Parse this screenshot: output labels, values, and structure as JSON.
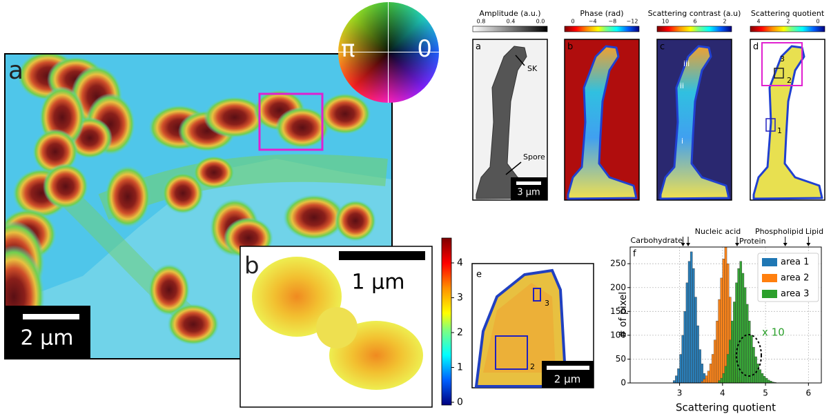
{
  "panel_a": {
    "label": "a",
    "scale_bar": "2 µm",
    "wheel_left": "π",
    "wheel_right": "0"
  },
  "panel_b": {
    "label": "b",
    "scale_bar": "1 µm",
    "colorbar_ticks": [
      "0",
      "1",
      "2",
      "3",
      "4"
    ]
  },
  "panel_e": {
    "label": "e",
    "scale_bar": "2 µm",
    "annotations": [
      "3",
      "2"
    ]
  },
  "top_panels": [
    {
      "label": "a",
      "colorbar_title": "Amplitude (a.u.)",
      "colorbar_ticks": [
        "0.8",
        "0.4",
        "0.0"
      ],
      "annotations": [
        "SK",
        "Spore"
      ],
      "scale_bar": "3 µm"
    },
    {
      "label": "b",
      "colorbar_title": "Phase (rad)",
      "colorbar_ticks": [
        "0",
        "−4",
        "−8",
        "−12"
      ]
    },
    {
      "label": "c",
      "colorbar_title": "Scattering contrast (a.u)",
      "colorbar_ticks": [
        "10",
        "6",
        "2"
      ],
      "annotations": [
        "iii",
        "ii",
        "i"
      ]
    },
    {
      "label": "d",
      "colorbar_title": "Scattering quotient",
      "colorbar_ticks": [
        "4",
        "2",
        "0"
      ],
      "annotations": [
        "3",
        "2",
        "1"
      ]
    }
  ],
  "chart_data": {
    "type": "histogram",
    "label": "f",
    "xlabel": "Scattering quotient",
    "ylabel": "# of pixel",
    "xlim": [
      1.85,
      6.3
    ],
    "ylim": [
      0,
      285
    ],
    "xticks": [
      3,
      4,
      5,
      6
    ],
    "yticks": [
      0,
      50,
      100,
      150,
      200,
      250
    ],
    "legend": "upper right",
    "bins": [
      2.8,
      2.85,
      2.9,
      2.95,
      3.0,
      3.05,
      3.1,
      3.15,
      3.2,
      3.25,
      3.3,
      3.35,
      3.4,
      3.45,
      3.5,
      3.55,
      3.6,
      3.65,
      3.7,
      3.75,
      3.8,
      3.85,
      3.9,
      3.95,
      4.0,
      4.05,
      4.1,
      4.15,
      4.2,
      4.25,
      4.3,
      4.35,
      4.4,
      4.45,
      4.5,
      4.55,
      4.6,
      4.65,
      4.7,
      4.75,
      4.8,
      4.85,
      4.9,
      4.95,
      5.0,
      5.05,
      5.1,
      5.15,
      5.2,
      5.25,
      5.3
    ],
    "series": [
      {
        "name": "area 1",
        "color": "#1f77b4",
        "values": [
          0,
          5,
          15,
          30,
          60,
          100,
          150,
          210,
          255,
          275,
          240,
          180,
          120,
          70,
          40,
          20,
          10,
          5,
          2,
          0,
          0,
          0,
          0,
          0,
          0,
          0,
          0,
          0,
          0,
          0,
          0,
          0,
          0,
          0,
          0,
          0,
          0,
          0,
          0,
          0,
          0,
          0,
          0,
          0,
          0,
          0,
          0,
          0,
          0,
          0
        ]
      },
      {
        "name": "area 2",
        "color": "#ff7f0e",
        "values": [
          0,
          0,
          0,
          0,
          0,
          0,
          0,
          0,
          0,
          0,
          0,
          0,
          0,
          0,
          3,
          8,
          15,
          25,
          40,
          60,
          90,
          130,
          175,
          220,
          260,
          285,
          250,
          180,
          110,
          60,
          30,
          12,
          5,
          2,
          0,
          0,
          0,
          0,
          0,
          0,
          0,
          0,
          0,
          0,
          0,
          0,
          0,
          0,
          0,
          0
        ]
      },
      {
        "name": "area 3",
        "color": "#2ca02c",
        "values": [
          0,
          0,
          0,
          0,
          0,
          0,
          0,
          0,
          0,
          0,
          0,
          0,
          0,
          0,
          0,
          0,
          0,
          0,
          0,
          0,
          0,
          0,
          5,
          10,
          20,
          35,
          60,
          90,
          130,
          170,
          210,
          240,
          255,
          230,
          200,
          165,
          130,
          100,
          75,
          55,
          40,
          28,
          20,
          14,
          10,
          6,
          4,
          2,
          1,
          0
        ]
      }
    ],
    "annotations": [
      {
        "text": "Carbohydrate",
        "x": 3.08
      },
      {
        "text": "Nucleic acid",
        "x": 3.2
      },
      {
        "text": "Protein",
        "x": 4.34
      },
      {
        "text": "Phospholipid",
        "x": 5.46
      },
      {
        "text": "Lipid",
        "x": 6.0
      }
    ],
    "inset_label": "x 10"
  }
}
